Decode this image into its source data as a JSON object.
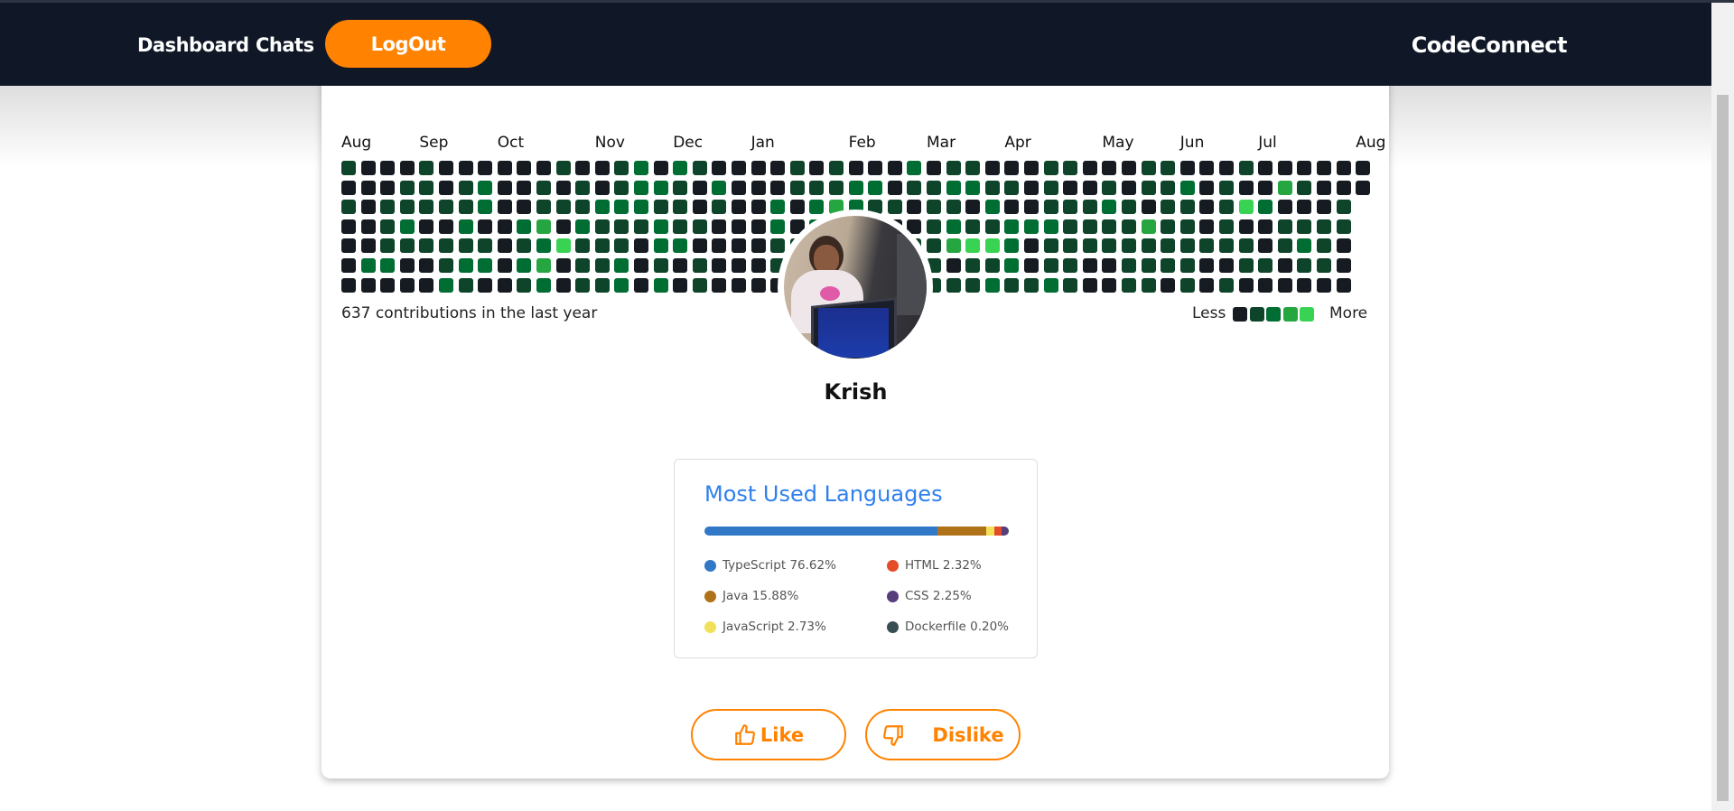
{
  "nav": {
    "dashboard": "Dashboard",
    "chats": "Chats",
    "logout": "LogOut",
    "brand": "CodeConnect"
  },
  "contributions": {
    "months": [
      "Aug",
      "Sep",
      "Oct",
      "Nov",
      "Dec",
      "Jan",
      "Feb",
      "Mar",
      "Apr",
      "May",
      "Jun",
      "Jul",
      "Aug"
    ],
    "summary": "637 contributions in the last year",
    "less": "Less",
    "more": "More",
    "level_colors": [
      "#161b22",
      "#0e4429",
      "#006d32",
      "#26a641",
      "#39d353"
    ],
    "rows": [
      [
        1,
        0,
        0,
        0,
        1,
        0,
        0,
        0,
        0,
        0,
        0,
        1,
        0,
        0,
        1,
        2,
        0,
        2,
        1,
        0,
        0,
        0,
        0,
        1,
        0,
        1,
        0,
        0,
        0,
        2,
        0,
        1,
        1,
        0,
        0,
        0,
        1,
        1,
        0,
        0,
        0,
        1,
        1,
        0,
        0,
        0,
        1,
        0,
        0,
        0,
        0,
        0,
        0
      ],
      [
        0,
        0,
        0,
        1,
        1,
        0,
        1,
        2,
        0,
        0,
        1,
        0,
        1,
        0,
        1,
        2,
        2,
        1,
        0,
        2,
        0,
        0,
        0,
        1,
        1,
        1,
        2,
        2,
        0,
        1,
        1,
        2,
        2,
        1,
        1,
        0,
        1,
        0,
        0,
        1,
        0,
        1,
        1,
        2,
        0,
        1,
        0,
        0,
        3,
        1,
        0,
        0,
        0
      ],
      [
        1,
        0,
        1,
        1,
        1,
        1,
        1,
        2,
        0,
        0,
        1,
        1,
        1,
        2,
        2,
        2,
        1,
        1,
        0,
        1,
        0,
        0,
        2,
        0,
        2,
        3,
        2,
        1,
        1,
        0,
        1,
        1,
        0,
        2,
        0,
        0,
        1,
        1,
        1,
        2,
        1,
        0,
        1,
        1,
        0,
        1,
        4,
        2,
        0,
        0,
        0,
        1
      ],
      [
        0,
        0,
        1,
        2,
        0,
        0,
        2,
        0,
        0,
        2,
        3,
        0,
        2,
        1,
        1,
        1,
        2,
        1,
        1,
        0,
        0,
        0,
        2,
        0,
        2,
        1,
        1,
        1,
        0,
        0,
        1,
        2,
        1,
        1,
        2,
        2,
        2,
        1,
        1,
        1,
        1,
        3,
        1,
        1,
        0,
        1,
        0,
        0,
        1,
        1,
        1,
        1
      ],
      [
        0,
        0,
        1,
        1,
        1,
        1,
        1,
        1,
        0,
        1,
        2,
        4,
        1,
        1,
        1,
        0,
        2,
        2,
        0,
        0,
        0,
        0,
        1,
        1,
        0,
        1,
        1,
        1,
        1,
        1,
        1,
        3,
        4,
        4,
        2,
        0,
        1,
        1,
        1,
        1,
        1,
        1,
        1,
        1,
        1,
        1,
        1,
        0,
        1,
        2,
        1,
        0
      ],
      [
        0,
        2,
        2,
        0,
        0,
        1,
        2,
        2,
        0,
        2,
        3,
        0,
        1,
        1,
        2,
        0,
        1,
        0,
        1,
        0,
        0,
        0,
        1,
        1,
        0,
        1,
        1,
        0,
        1,
        1,
        1,
        0,
        1,
        1,
        2,
        0,
        1,
        1,
        0,
        0,
        1,
        1,
        1,
        1,
        0,
        0,
        1,
        1,
        0,
        1,
        1,
        0
      ],
      [
        0,
        0,
        0,
        0,
        0,
        2,
        1,
        0,
        0,
        1,
        2,
        0,
        1,
        1,
        2,
        0,
        2,
        0,
        1,
        0,
        0,
        0,
        0,
        1,
        0,
        1,
        1,
        0,
        1,
        1,
        1,
        1,
        1,
        2,
        1,
        1,
        2,
        1,
        0,
        0,
        1,
        1,
        0,
        1,
        0,
        1,
        0,
        0,
        0,
        0,
        0,
        0
      ]
    ]
  },
  "profile": {
    "name": "Krish"
  },
  "languages": {
    "title": "Most Used Languages",
    "items": [
      {
        "label": "TypeScript 76.62%",
        "percent": 76.62,
        "color": "#3178c6"
      },
      {
        "label": "Java 15.88%",
        "percent": 15.88,
        "color": "#b07219"
      },
      {
        "label": "JavaScript 2.73%",
        "percent": 2.73,
        "color": "#f1e05a"
      },
      {
        "label": "HTML 2.32%",
        "percent": 2.32,
        "color": "#e34c26"
      },
      {
        "label": "CSS 2.25%",
        "percent": 2.25,
        "color": "#563d7c"
      },
      {
        "label": "Dockerfile 0.20%",
        "percent": 0.2,
        "color": "#384d54"
      }
    ]
  },
  "actions": {
    "like": "Like",
    "dislike": "Dislike"
  },
  "colors": {
    "accent": "#ff8200",
    "navbar": "#101828",
    "title_blue": "#2f80ed"
  }
}
